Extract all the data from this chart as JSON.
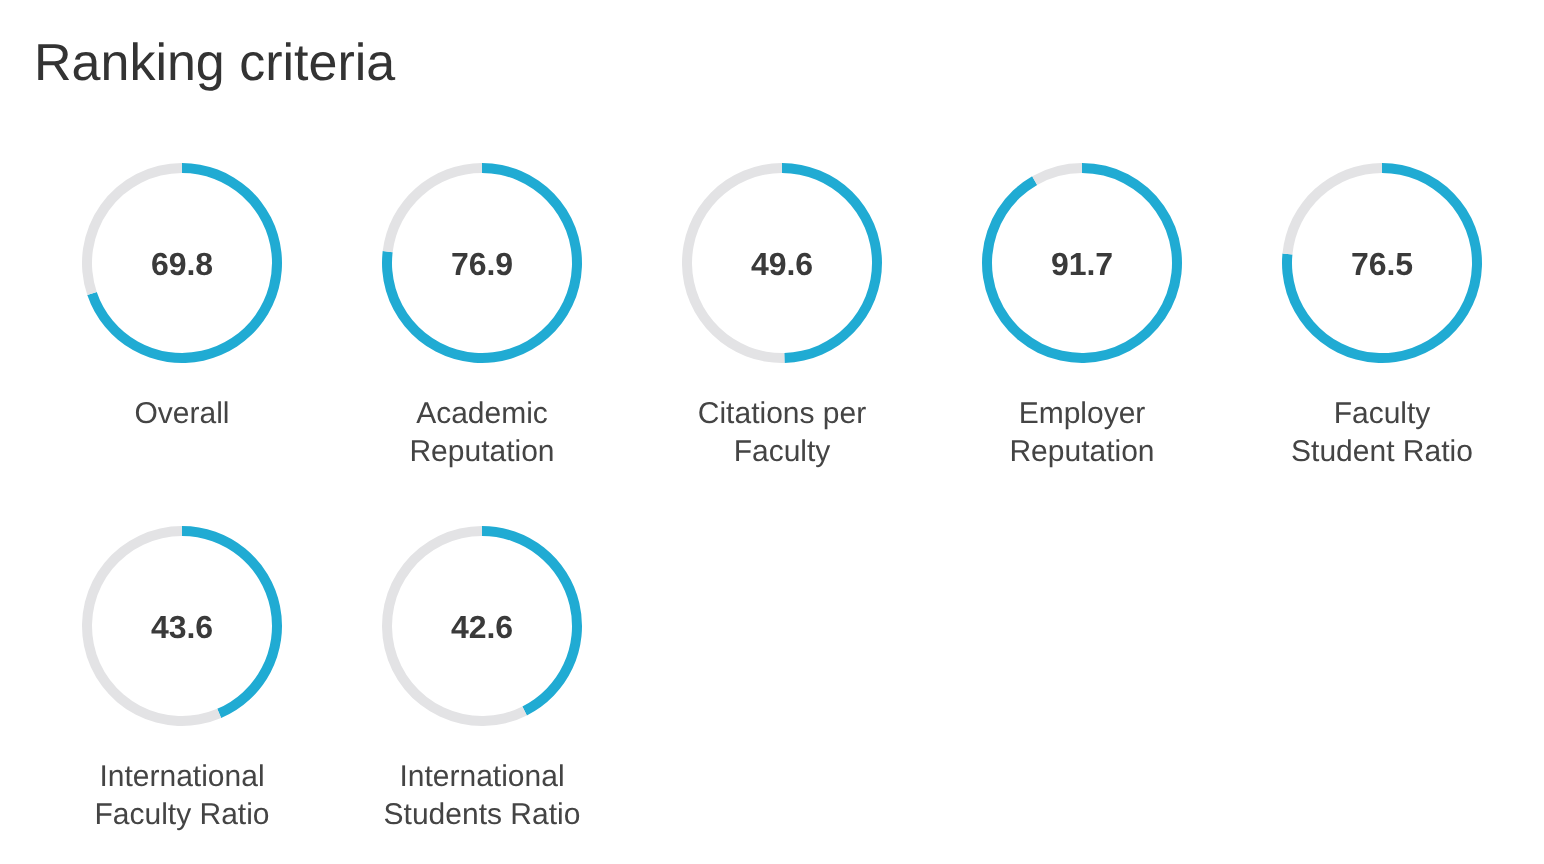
{
  "chart_data": [
    {
      "type": "other",
      "title": "Ranking criteria"
    },
    {
      "type": "donut",
      "title": "Overall",
      "categories": [
        null,
        null
      ],
      "values": [
        69.8,
        30.2
      ],
      "colors": [
        "#20abd3",
        "#e3e3e5"
      ],
      "value_labels": [
        "69.8",
        null
      ]
    },
    {
      "type": "donut",
      "title": "Academic Reputation",
      "categories": [
        null,
        null
      ],
      "values": [
        76.9,
        23.1
      ],
      "colors": [
        "#20abd3",
        "#e3e3e5"
      ],
      "value_labels": [
        "76.9",
        null
      ]
    },
    {
      "type": "donut",
      "title": "Citations per Faculty",
      "categories": [
        null,
        null
      ],
      "values": [
        49.6,
        50.4
      ],
      "colors": [
        "#20abd3",
        "#e3e3e5"
      ],
      "value_labels": [
        "49.6",
        null
      ]
    },
    {
      "type": "donut",
      "title": "Employer Reputation",
      "categories": [
        null,
        null
      ],
      "values": [
        91.7,
        8.3
      ],
      "colors": [
        "#20abd3",
        "#e3e3e5"
      ],
      "value_labels": [
        "91.7",
        null
      ]
    },
    {
      "type": "donut",
      "title": "Faculty Student Ratio",
      "categories": [
        null,
        null
      ],
      "values": [
        76.5,
        23.5
      ],
      "colors": [
        "#20abd3",
        "#e3e3e5"
      ],
      "value_labels": [
        "76.5",
        null
      ]
    },
    {
      "type": "donut",
      "title": "International Faculty Ratio",
      "categories": [
        null,
        null
      ],
      "values": [
        43.6,
        56.4
      ],
      "colors": [
        "#20abd3",
        "#e3e3e5"
      ],
      "value_labels": [
        "43.6",
        null
      ]
    },
    {
      "type": "donut",
      "title": "International Students Ratio",
      "categories": [
        null,
        null
      ],
      "values": [
        42.6,
        57.4
      ],
      "colors": [
        "#20abd3",
        "#e3e3e5"
      ],
      "value_labels": [
        "42.6",
        null
      ]
    }
  ]
}
